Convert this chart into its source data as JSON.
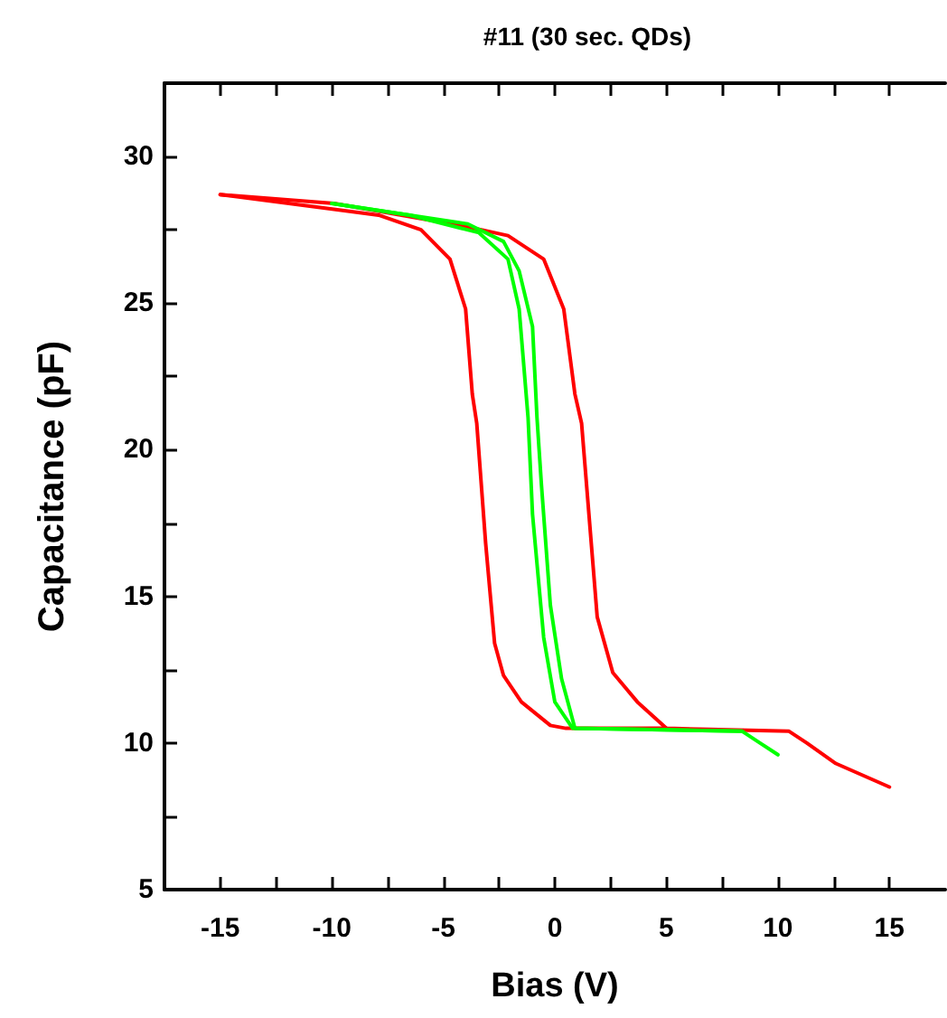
{
  "chart_data": {
    "type": "line",
    "title": "#11 (30 sec. QDs)",
    "xlabel": "Bias (V)",
    "ylabel": "Capacitance (pF)",
    "xlim": [
      -17.5,
      17.5
    ],
    "ylim": [
      5,
      32.5
    ],
    "xticks": [
      -15,
      {
        "value": -12.5,
        "label": null
      },
      -10,
      {
        "value": -7.5,
        "label": null
      },
      -5,
      {
        "value": -2.5,
        "label": null
      },
      0,
      {
        "value": 2.5,
        "label": null
      },
      5,
      {
        "value": 7.5,
        "label": null
      },
      10,
      {
        "value": 12.5,
        "label": null
      },
      15
    ],
    "yticks": [
      5,
      {
        "value": 7.5,
        "label": null
      },
      10,
      {
        "value": 12.5,
        "label": null
      },
      15,
      {
        "value": 17.5,
        "label": null
      },
      20,
      {
        "value": 22.5,
        "label": null
      },
      25,
      {
        "value": 27.5,
        "label": null
      },
      30
    ],
    "grid": false,
    "marker": "none",
    "line_style": "solid",
    "series": [
      {
        "color": "#ff0000",
        "x": [
          -15,
          -9.9,
          -3.9,
          -2.1,
          -0.5,
          0.4,
          0.9,
          1.2,
          1.9,
          2.6,
          3.7,
          5.0,
          10.5,
          11.3,
          12.6,
          15
        ],
        "values": [
          28.7,
          28.4,
          27.6,
          27.3,
          26.5,
          24.8,
          21.9,
          20.9,
          14.3,
          12.4,
          11.4,
          10.5,
          10.4,
          10.0,
          9.3,
          8.5
        ]
      },
      {
        "color": "#ff0000",
        "x": [
          -15,
          -9.9,
          -7.9,
          -6.0,
          -4.7,
          -4.0,
          -3.7,
          -3.5,
          -3.1,
          -2.7,
          -2.3,
          -1.5,
          -0.2,
          0.5,
          5.0
        ],
        "values": [
          28.7,
          28.2,
          28.0,
          27.5,
          26.5,
          24.8,
          21.9,
          20.9,
          16.8,
          13.4,
          12.3,
          11.4,
          10.6,
          10.5,
          10.5
        ]
      },
      {
        "color": "#00ff00",
        "x": [
          -10,
          -6.5,
          -3.9,
          -2.3,
          -1.6,
          -1.0,
          -0.8,
          -0.6,
          -0.2,
          0.3,
          0.9,
          8.4,
          9.2,
          10
        ],
        "values": [
          28.4,
          28.0,
          27.7,
          27.1,
          26.1,
          24.2,
          21.1,
          18.8,
          14.7,
          12.2,
          10.5,
          10.4,
          10.0,
          9.6
        ]
      },
      {
        "color": "#00ff00",
        "x": [
          -10,
          -6.5,
          -3.4,
          -2.1,
          -1.6,
          -1.2,
          -1.0,
          -0.5,
          0,
          0.8,
          8.4
        ],
        "values": [
          28.4,
          28.0,
          27.4,
          26.5,
          24.8,
          21.1,
          17.8,
          13.6,
          11.4,
          10.5,
          10.4
        ]
      }
    ]
  }
}
